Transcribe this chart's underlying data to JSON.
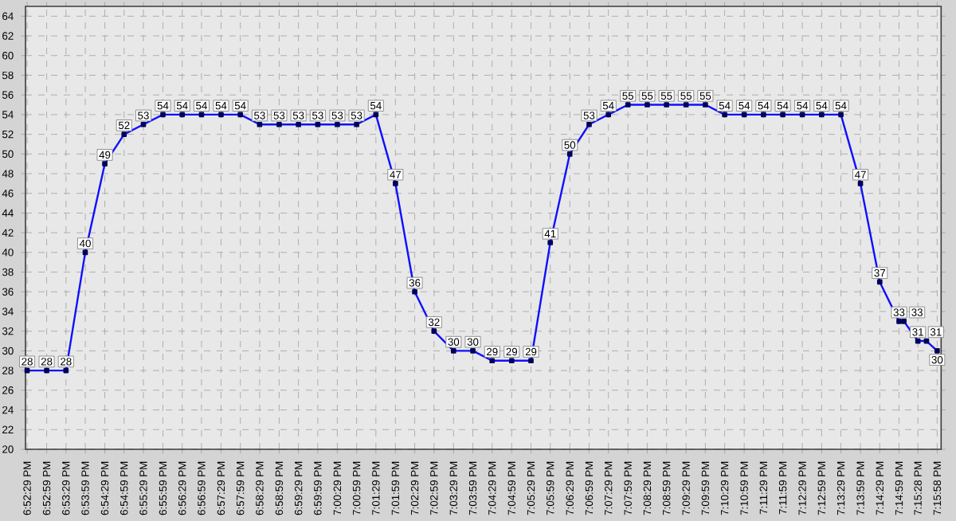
{
  "chart_data": {
    "type": "line",
    "color": "#1010ff",
    "marker": "square",
    "data_labels": true,
    "grid": true,
    "x": [
      18.8747,
      18.8831,
      18.8914,
      18.8997,
      18.9081,
      18.9164,
      18.9247,
      18.9331,
      18.9414,
      18.9497,
      18.9581,
      18.9664,
      18.9747,
      18.9831,
      18.9914,
      18.9997,
      19.0081,
      19.0164,
      19.0247,
      19.0331,
      19.0414,
      19.0497,
      19.0581,
      19.0664,
      19.0747,
      19.0831,
      19.0914,
      19.0997,
      19.1081,
      19.1164,
      19.1247,
      19.1331,
      19.1414,
      19.1497,
      19.1581,
      19.1664,
      19.1747,
      19.1831,
      19.1914,
      19.1997,
      19.2081,
      19.2164,
      19.2247,
      19.2331,
      19.2414,
      19.2497,
      19.2518,
      19.2578,
      19.2615,
      19.2661
    ],
    "values": [
      28,
      28,
      28,
      40,
      49,
      52,
      53,
      54,
      54,
      54,
      54,
      54,
      53,
      53,
      53,
      53,
      53,
      53,
      54,
      47,
      36,
      32,
      30,
      30,
      29,
      29,
      29,
      41,
      50,
      53,
      54,
      55,
      55,
      55,
      55,
      55,
      54,
      54,
      54,
      54,
      54,
      54,
      54,
      47,
      37,
      33,
      33,
      31,
      31,
      30
    ],
    "xlim": [
      18.874,
      19.2678
    ],
    "ylim": [
      20,
      65
    ],
    "yticks": [
      20,
      22,
      24,
      26,
      28,
      30,
      32,
      34,
      36,
      38,
      40,
      42,
      44,
      46,
      48,
      50,
      52,
      54,
      56,
      58,
      60,
      62,
      64
    ],
    "xticks": [
      {
        "value": 18.8747,
        "label": "6:52:29 PM"
      },
      {
        "value": 18.8831,
        "label": "6:52:59 PM"
      },
      {
        "value": 18.8914,
        "label": "6:53:29 PM"
      },
      {
        "value": 18.8997,
        "label": "6:53:59 PM"
      },
      {
        "value": 18.9081,
        "label": "6:54:29 PM"
      },
      {
        "value": 18.9164,
        "label": "6:54:59 PM"
      },
      {
        "value": 18.9247,
        "label": "6:55:29 PM"
      },
      {
        "value": 18.9331,
        "label": "6:55:59 PM"
      },
      {
        "value": 18.9414,
        "label": "6:56:29 PM"
      },
      {
        "value": 18.9497,
        "label": "6:56:59 PM"
      },
      {
        "value": 18.9581,
        "label": "6:57:29 PM"
      },
      {
        "value": 18.9664,
        "label": "6:57:59 PM"
      },
      {
        "value": 18.9747,
        "label": "6:58:29 PM"
      },
      {
        "value": 18.9831,
        "label": "6:58:59 PM"
      },
      {
        "value": 18.9914,
        "label": "6:59:29 PM"
      },
      {
        "value": 18.9997,
        "label": "6:59:59 PM"
      },
      {
        "value": 19.0081,
        "label": "7:00:29 PM"
      },
      {
        "value": 19.0164,
        "label": "7:00:59 PM"
      },
      {
        "value": 19.0247,
        "label": "7:01:29 PM"
      },
      {
        "value": 19.0331,
        "label": "7:01:59 PM"
      },
      {
        "value": 19.0414,
        "label": "7:02:29 PM"
      },
      {
        "value": 19.0497,
        "label": "7:02:59 PM"
      },
      {
        "value": 19.0581,
        "label": "7:03:29 PM"
      },
      {
        "value": 19.0664,
        "label": "7:03:59 PM"
      },
      {
        "value": 19.0747,
        "label": "7:04:29 PM"
      },
      {
        "value": 19.0831,
        "label": "7:04:59 PM"
      },
      {
        "value": 19.0914,
        "label": "7:05:29 PM"
      },
      {
        "value": 19.0997,
        "label": "7:05:59 PM"
      },
      {
        "value": 19.1081,
        "label": "7:06:29 PM"
      },
      {
        "value": 19.1164,
        "label": "7:06:59 PM"
      },
      {
        "value": 19.1247,
        "label": "7:07:29 PM"
      },
      {
        "value": 19.1331,
        "label": "7:07:59 PM"
      },
      {
        "value": 19.1414,
        "label": "7:08:29 PM"
      },
      {
        "value": 19.1497,
        "label": "7:08:59 PM"
      },
      {
        "value": 19.1581,
        "label": "7:09:29 PM"
      },
      {
        "value": 19.1664,
        "label": "7:09:59 PM"
      },
      {
        "value": 19.1747,
        "label": "7:10:29 PM"
      },
      {
        "value": 19.1831,
        "label": "7:10:59 PM"
      },
      {
        "value": 19.1914,
        "label": "7:11:29 PM"
      },
      {
        "value": 19.1997,
        "label": "7:11:59 PM"
      },
      {
        "value": 19.2081,
        "label": "7:12:29 PM"
      },
      {
        "value": 19.2164,
        "label": "7:12:59 PM"
      },
      {
        "value": 19.2247,
        "label": "7:13:29 PM"
      },
      {
        "value": 19.2331,
        "label": "7:13:59 PM"
      },
      {
        "value": 19.2414,
        "label": "7:14:29 PM"
      },
      {
        "value": 19.2497,
        "label": "7:14:59 PM"
      },
      {
        "value": 19.2578,
        "label": "7:15:28 PM"
      },
      {
        "value": 19.2661,
        "label": "7:15:58 PM"
      }
    ]
  }
}
